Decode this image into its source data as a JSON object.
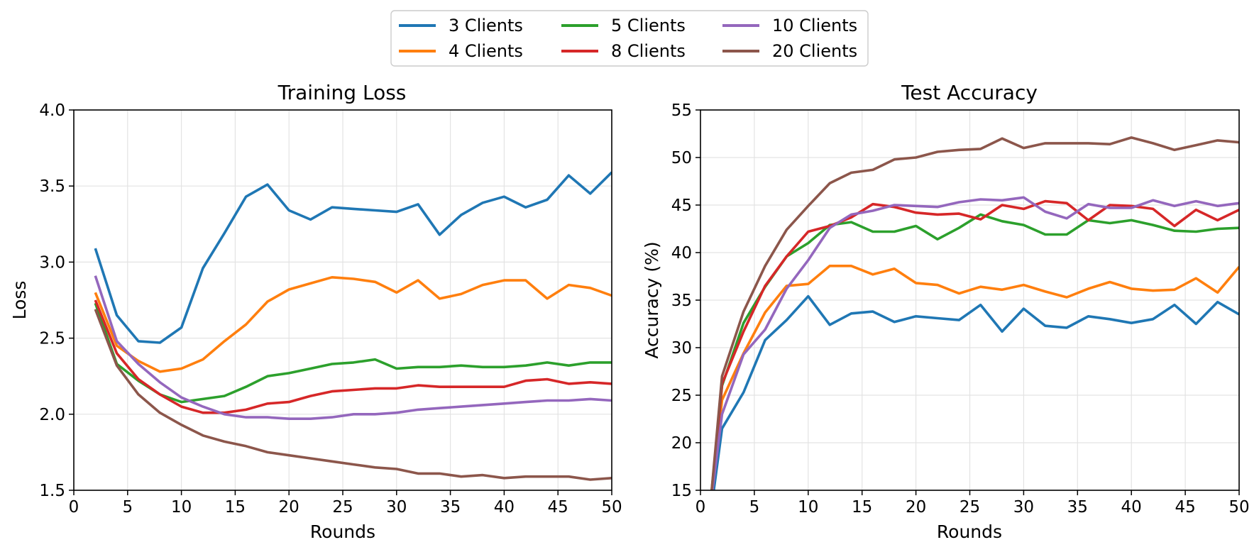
{
  "legend": {
    "items": [
      {
        "label": "3 Clients",
        "color": "#1f77b4"
      },
      {
        "label": "4 Clients",
        "color": "#ff7f0e"
      },
      {
        "label": "5 Clients",
        "color": "#2ca02c"
      },
      {
        "label": "8 Clients",
        "color": "#d62728"
      },
      {
        "label": "10 Clients",
        "color": "#9467bd"
      },
      {
        "label": "20 Clients",
        "color": "#8c564b"
      }
    ],
    "placement": "top-center"
  },
  "chart_data": [
    {
      "type": "line",
      "title": "Training Loss",
      "xlabel": "Rounds",
      "ylabel": "Loss",
      "xlim": [
        0,
        50
      ],
      "ylim": [
        1.5,
        4.0
      ],
      "xticks": [
        "0",
        "5",
        "10",
        "15",
        "20",
        "25",
        "30",
        "35",
        "40",
        "45",
        "50"
      ],
      "yticks": [
        "1.5",
        "2.0",
        "2.5",
        "3.0",
        "3.5",
        "4.0"
      ],
      "grid": true,
      "x": [
        2,
        4,
        6,
        8,
        10,
        12,
        14,
        16,
        18,
        20,
        22,
        24,
        26,
        28,
        30,
        32,
        34,
        36,
        38,
        40,
        42,
        44,
        46,
        48,
        50
      ],
      "series": [
        {
          "name": "3 Clients",
          "color": "#1f77b4",
          "values": [
            3.09,
            2.65,
            2.48,
            2.47,
            2.57,
            2.96,
            3.19,
            3.43,
            3.51,
            3.34,
            3.28,
            3.36,
            3.35,
            3.34,
            3.33,
            3.38,
            3.18,
            3.31,
            3.39,
            3.43,
            3.36,
            3.41,
            3.57,
            3.45,
            3.59
          ]
        },
        {
          "name": "4 Clients",
          "color": "#ff7f0e",
          "values": [
            2.8,
            2.45,
            2.35,
            2.28,
            2.3,
            2.36,
            2.48,
            2.59,
            2.74,
            2.82,
            2.86,
            2.9,
            2.89,
            2.87,
            2.8,
            2.88,
            2.76,
            2.79,
            2.85,
            2.88,
            2.88,
            2.76,
            2.85,
            2.83,
            2.78
          ]
        },
        {
          "name": "5 Clients",
          "color": "#2ca02c",
          "values": [
            2.73,
            2.33,
            2.22,
            2.13,
            2.08,
            2.1,
            2.12,
            2.18,
            2.25,
            2.27,
            2.3,
            2.33,
            2.34,
            2.36,
            2.3,
            2.31,
            2.31,
            2.32,
            2.31,
            2.31,
            2.32,
            2.34,
            2.32,
            2.34,
            2.34
          ]
        },
        {
          "name": "8 Clients",
          "color": "#d62728",
          "values": [
            2.75,
            2.4,
            2.23,
            2.13,
            2.05,
            2.01,
            2.01,
            2.03,
            2.07,
            2.08,
            2.12,
            2.15,
            2.16,
            2.17,
            2.17,
            2.19,
            2.18,
            2.18,
            2.18,
            2.18,
            2.22,
            2.23,
            2.2,
            2.21,
            2.2
          ]
        },
        {
          "name": "10 Clients",
          "color": "#9467bd",
          "values": [
            2.91,
            2.48,
            2.33,
            2.21,
            2.11,
            2.05,
            2.0,
            1.98,
            1.98,
            1.97,
            1.97,
            1.98,
            2.0,
            2.0,
            2.01,
            2.03,
            2.04,
            2.05,
            2.06,
            2.07,
            2.08,
            2.09,
            2.09,
            2.1,
            2.09
          ]
        },
        {
          "name": "20 Clients",
          "color": "#8c564b",
          "values": [
            2.69,
            2.32,
            2.13,
            2.01,
            1.93,
            1.86,
            1.82,
            1.79,
            1.75,
            1.73,
            1.71,
            1.69,
            1.67,
            1.65,
            1.64,
            1.61,
            1.61,
            1.59,
            1.6,
            1.58,
            1.59,
            1.59,
            1.59,
            1.57,
            1.58
          ]
        }
      ]
    },
    {
      "type": "line",
      "title": "Test Accuracy",
      "xlabel": "Rounds",
      "ylabel": "Accuracy (%)",
      "xlim": [
        0,
        50
      ],
      "ylim": [
        15,
        55
      ],
      "xticks": [
        "0",
        "5",
        "10",
        "15",
        "20",
        "25",
        "30",
        "35",
        "40",
        "45",
        "50"
      ],
      "yticks": [
        "15",
        "20",
        "25",
        "30",
        "35",
        "40",
        "45",
        "50",
        "55"
      ],
      "grid": true,
      "x": [
        1,
        2,
        4,
        6,
        8,
        10,
        12,
        14,
        16,
        18,
        20,
        22,
        24,
        26,
        28,
        30,
        32,
        34,
        36,
        38,
        40,
        42,
        44,
        46,
        48,
        50
      ],
      "series": [
        {
          "name": "3 Clients",
          "color": "#1f77b4",
          "values": [
            13.0,
            21.5,
            25.3,
            30.8,
            32.9,
            35.4,
            32.4,
            33.6,
            33.8,
            32.7,
            33.3,
            33.1,
            32.9,
            34.5,
            31.7,
            34.1,
            32.3,
            32.1,
            33.3,
            33.0,
            32.6,
            33.0,
            34.5,
            32.5,
            34.8,
            33.5
          ]
        },
        {
          "name": "4 Clients",
          "color": "#ff7f0e",
          "values": [
            14.0,
            24.5,
            29.4,
            33.7,
            36.5,
            36.7,
            38.6,
            38.6,
            37.7,
            38.3,
            36.8,
            36.6,
            35.7,
            36.4,
            36.1,
            36.6,
            35.9,
            35.3,
            36.2,
            36.9,
            36.2,
            36.0,
            36.1,
            37.3,
            35.8,
            38.5
          ]
        },
        {
          "name": "5 Clients",
          "color": "#2ca02c",
          "values": [
            14.5,
            26.0,
            32.6,
            36.4,
            39.6,
            41.0,
            42.9,
            43.2,
            42.2,
            42.2,
            42.8,
            41.4,
            42.6,
            44.0,
            43.3,
            42.9,
            41.9,
            41.9,
            43.4,
            43.1,
            43.4,
            42.9,
            42.3,
            42.2,
            42.5,
            42.6
          ]
        },
        {
          "name": "8 Clients",
          "color": "#d62728",
          "values": [
            14.0,
            26.2,
            31.7,
            36.5,
            39.6,
            42.2,
            42.8,
            43.7,
            45.1,
            44.8,
            44.2,
            44.0,
            44.1,
            43.5,
            45.0,
            44.6,
            45.4,
            45.2,
            43.4,
            45.0,
            44.9,
            44.6,
            42.8,
            44.5,
            43.4,
            44.5
          ]
        },
        {
          "name": "10 Clients",
          "color": "#9467bd",
          "values": [
            14.0,
            23.0,
            29.3,
            31.9,
            36.2,
            39.2,
            42.6,
            44.0,
            44.4,
            45.0,
            44.9,
            44.8,
            45.3,
            45.6,
            45.5,
            45.8,
            44.3,
            43.6,
            45.1,
            44.7,
            44.7,
            45.5,
            44.9,
            45.4,
            44.9,
            45.2
          ]
        },
        {
          "name": "20 Clients",
          "color": "#8c564b",
          "values": [
            14.5,
            27.0,
            33.8,
            38.6,
            42.4,
            44.9,
            47.3,
            48.4,
            48.7,
            49.8,
            50.0,
            50.6,
            50.8,
            50.9,
            52.0,
            51.0,
            51.5,
            51.5,
            51.5,
            51.4,
            52.1,
            51.5,
            50.8,
            51.3,
            51.8,
            51.6
          ]
        }
      ]
    }
  ]
}
